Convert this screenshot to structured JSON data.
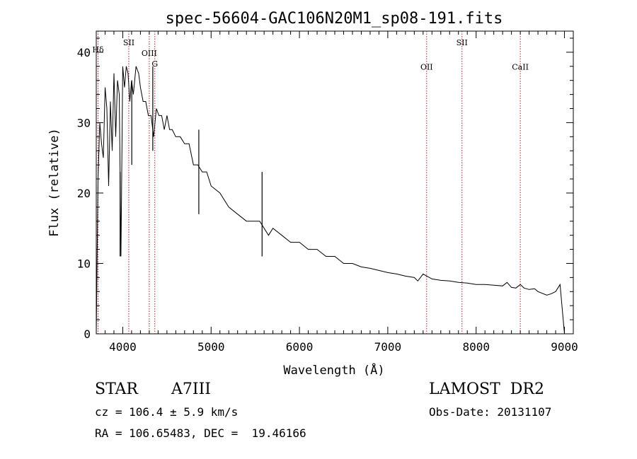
{
  "chart_data": {
    "type": "line",
    "title": "spec-56604-GAC106N20M1_sp08-191.fits",
    "xlabel": "Wavelength (Å)",
    "ylabel": "Flux (relative)",
    "xlim": [
      3700,
      9100
    ],
    "ylim": [
      0,
      43
    ],
    "xticks": [
      4000,
      5000,
      6000,
      7000,
      8000,
      9000
    ],
    "yticks": [
      0,
      10,
      20,
      30,
      40
    ],
    "grid": false,
    "line_color": "#000000",
    "marker_color": "#b22222",
    "series": [
      {
        "x": [
          3700,
          3720,
          3740,
          3760,
          3780,
          3800,
          3820,
          3840,
          3860,
          3880,
          3900,
          3920,
          3940,
          3960,
          3980,
          4000,
          4020,
          4040,
          4060,
          4080,
          4100,
          4120,
          4150,
          4180,
          4200,
          4230,
          4260,
          4290,
          4320,
          4350,
          4380,
          4410,
          4440,
          4470,
          4500,
          4530,
          4560,
          4600,
          4650,
          4700,
          4750,
          4800,
          4850,
          4900,
          4950,
          5000,
          5100,
          5200,
          5300,
          5400,
          5500,
          5550,
          5600,
          5650,
          5700,
          5800,
          5900,
          6000,
          6100,
          6200,
          6300,
          6400,
          6500,
          6560,
          6600,
          6700,
          6800,
          6900,
          7000,
          7100,
          7200,
          7300,
          7340,
          7400,
          7500,
          7600,
          7700,
          7800,
          7900,
          8000,
          8100,
          8200,
          8300,
          8350,
          8400,
          8450,
          8500,
          8542,
          8600,
          8662,
          8700,
          8800,
          8850,
          8900,
          8950,
          9000
        ],
        "y": [
          0,
          22,
          30,
          27,
          25,
          35,
          32,
          21,
          33,
          26,
          37,
          28,
          36,
          34,
          11,
          38,
          35,
          38,
          37,
          33,
          36,
          34,
          38,
          37,
          35,
          33,
          33,
          31,
          31,
          28,
          32,
          31,
          31,
          29,
          31,
          29,
          29,
          28,
          28,
          27,
          27,
          24,
          24,
          23,
          23,
          21,
          20,
          18,
          17,
          16,
          16,
          16,
          15,
          14,
          15,
          14,
          13,
          13,
          12,
          12,
          11,
          11,
          10,
          10,
          10,
          9.5,
          9.3,
          9.0,
          8.7,
          8.5,
          8.2,
          8.0,
          7.5,
          8.5,
          7.8,
          7.6,
          7.5,
          7.3,
          7.2,
          7.0,
          7.0,
          6.9,
          6.8,
          7.3,
          6.6,
          6.5,
          7.0,
          6.5,
          6.3,
          6.4,
          6.0,
          5.5,
          5.7,
          6.0,
          7.0,
          0
        ],
        "dips": [
          {
            "x": 3970,
            "y": 11
          },
          {
            "x": 4102,
            "y": 24
          },
          {
            "x": 4340,
            "y": 26
          },
          {
            "x": 4861,
            "y": 17
          },
          {
            "x": 5577,
            "y": 11
          }
        ]
      }
    ],
    "line_markers": [
      {
        "label": "Hδ",
        "x": 3720,
        "y_label": 40
      },
      {
        "label": "SII",
        "x": 4068,
        "y_label": 41
      },
      {
        "label": "OIII",
        "x": 4300,
        "y_label": 39.5
      },
      {
        "label": "G",
        "x": 4363,
        "y_label": 38
      },
      {
        "label": "OII",
        "x": 7440,
        "y_label": 37.5
      },
      {
        "label": "SII",
        "x": 7840,
        "y_label": 41
      },
      {
        "label": "CaII",
        "x": 8500,
        "y_label": 37.5
      }
    ]
  },
  "info": {
    "object_class": "STAR",
    "subclass": "A7III",
    "survey": "LAMOST  DR2",
    "cz": "cz = 106.4 ± 5.9 km/s",
    "obs_date": "Obs-Date: 20131107",
    "coords": "RA = 106.65483, DEC =  19.46166"
  }
}
